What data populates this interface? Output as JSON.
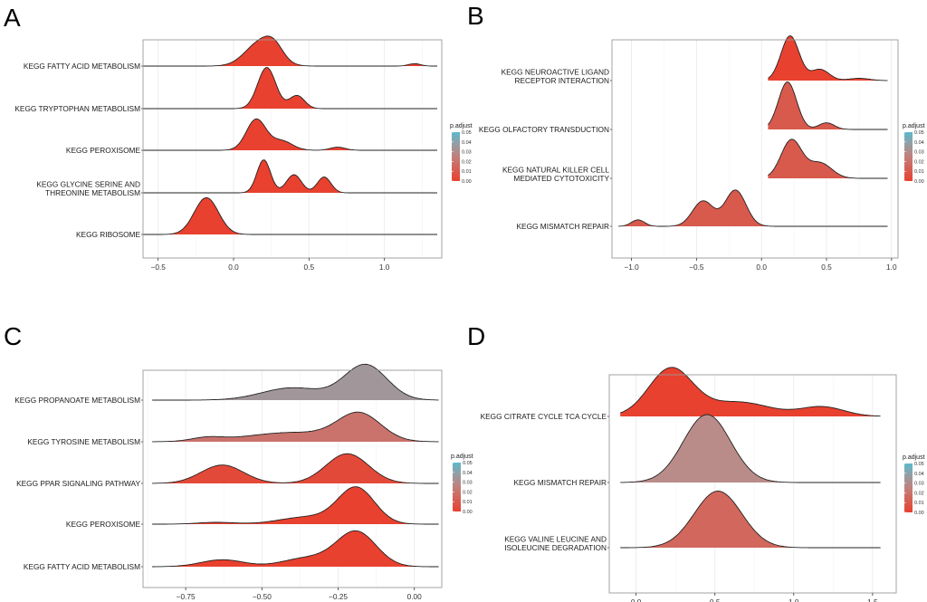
{
  "legend": {
    "title": "p.adjust",
    "ticks": [
      "0.05",
      "0.04",
      "0.03",
      "0.02",
      "0.01",
      "0.00"
    ],
    "color_low": "#E8412F",
    "color_high": "#5BB8CC"
  },
  "chart_data": [
    {
      "panel": "A",
      "type": "ridgeline",
      "xlim": [
        -0.6,
        1.38
      ],
      "xticks": [
        -0.5,
        0.0,
        0.5,
        1.0
      ],
      "xtick_labels": [
        "−0.5",
        "0.0",
        "0.5",
        "1.0"
      ],
      "pathways": [
        {
          "label": "KEGG FATTY ACID METABOLISM",
          "padj": 0.0,
          "range": [
            -0.6,
            1.35
          ],
          "peak": 0.62,
          "bumps": [
            [
              0.18,
              1.0,
              0.1
            ],
            [
              0.27,
              0.45,
              0.06
            ],
            [
              1.2,
              0.1,
              0.04
            ]
          ]
        },
        {
          "label": "KEGG TRYPTOPHAN METABOLISM",
          "padj": 0.0,
          "range": [
            -0.6,
            1.35
          ],
          "peak": 0.85,
          "bumps": [
            [
              0.22,
              1.0,
              0.06
            ],
            [
              0.42,
              0.32,
              0.05
            ]
          ]
        },
        {
          "label": "KEGG PEROXISOME",
          "padj": 0.0,
          "range": [
            -0.6,
            1.35
          ],
          "peak": 0.65,
          "bumps": [
            [
              0.15,
              1.0,
              0.065
            ],
            [
              0.32,
              0.3,
              0.07
            ],
            [
              0.69,
              0.1,
              0.05
            ]
          ]
        },
        {
          "label": [
            "KEGG GLYCINE SERINE AND",
            "THREONINE METABOLISM"
          ],
          "padj": 0.0,
          "range": [
            -0.6,
            1.35
          ],
          "peak": 0.68,
          "bumps": [
            [
              0.2,
              1.0,
              0.045
            ],
            [
              0.4,
              0.55,
              0.05
            ],
            [
              0.6,
              0.48,
              0.045
            ]
          ]
        },
        {
          "label": "KEGG RIBOSOME",
          "padj": 0.0,
          "range": [
            -0.6,
            1.35
          ],
          "peak": 0.76,
          "bumps": [
            [
              -0.18,
              1.0,
              0.08
            ]
          ]
        }
      ]
    },
    {
      "panel": "B",
      "type": "ridgeline",
      "xlim": [
        -1.15,
        1.05
      ],
      "xticks": [
        -1.0,
        -0.5,
        0.0,
        0.5,
        1.0
      ],
      "xtick_labels": [
        "−1.0",
        "−0.5",
        "0.0",
        "0.5",
        "1.0"
      ],
      "pathways": [
        {
          "label": [
            "KEGG NEUROACTIVE LIGAND",
            "RECEPTOR INTERACTION"
          ],
          "padj": 0.0,
          "range": [
            0.05,
            0.97
          ],
          "peak": 0.8,
          "bumps": [
            [
              0.22,
              1.0,
              0.07
            ],
            [
              0.45,
              0.25,
              0.07
            ],
            [
              0.75,
              0.05,
              0.08
            ]
          ]
        },
        {
          "label": "KEGG OLFACTORY TRANSDUCTION",
          "padj": 0.01,
          "range": [
            0.05,
            0.97
          ],
          "peak": 0.85,
          "bumps": [
            [
              0.2,
              1.0,
              0.07
            ],
            [
              0.5,
              0.14,
              0.06
            ]
          ]
        },
        {
          "label": [
            "KEGG NATURAL KILLER CELL",
            "MEDIATED CYTOTOXICITY"
          ],
          "padj": 0.01,
          "range": [
            0.05,
            0.97
          ],
          "peak": 0.7,
          "bumps": [
            [
              0.23,
              1.0,
              0.08
            ],
            [
              0.45,
              0.4,
              0.09
            ]
          ]
        },
        {
          "label": "KEGG MISMATCH REPAIR",
          "padj": 0.01,
          "range": [
            -1.1,
            0.97
          ],
          "peak": 0.65,
          "bumps": [
            [
              -0.95,
              0.18,
              0.05
            ],
            [
              -0.45,
              0.7,
              0.08
            ],
            [
              -0.2,
              1.0,
              0.08
            ]
          ]
        }
      ]
    },
    {
      "panel": "C",
      "type": "ridgeline",
      "xlim": [
        -0.89,
        0.09
      ],
      "xticks": [
        -0.75,
        -0.5,
        -0.25,
        0.0
      ],
      "xtick_labels": [
        "−0.75",
        "−0.50",
        "−0.25",
        "0.00"
      ],
      "pathways": [
        {
          "label": "KEGG PROPANOATE METABOLISM",
          "padj": 0.035,
          "range": [
            -0.86,
            0.08
          ],
          "peak": 0.75,
          "bumps": [
            [
              -0.4,
              0.35,
              0.1
            ],
            [
              -0.16,
              1.0,
              0.07
            ]
          ]
        },
        {
          "label": "KEGG TYROSINE METABOLISM",
          "padj": 0.02,
          "range": [
            -0.86,
            0.08
          ],
          "peak": 0.62,
          "bumps": [
            [
              -0.68,
              0.13,
              0.05
            ],
            [
              -0.4,
              0.35,
              0.15
            ],
            [
              -0.18,
              1.0,
              0.07
            ]
          ]
        },
        {
          "label": "KEGG PPAR SIGNALING PATHWAY",
          "padj": 0.003,
          "range": [
            -0.86,
            0.08
          ],
          "peak": 0.62,
          "bumps": [
            [
              -0.63,
              0.62,
              0.07
            ],
            [
              -0.22,
              1.0,
              0.07
            ]
          ]
        },
        {
          "label": "KEGG PEROXISOME",
          "padj": 0.0,
          "range": [
            -0.86,
            0.08
          ],
          "peak": 0.78,
          "bumps": [
            [
              -0.65,
              0.05,
              0.06
            ],
            [
              -0.35,
              0.2,
              0.09
            ],
            [
              -0.19,
              1.0,
              0.06
            ]
          ]
        },
        {
          "label": "KEGG FATTY ACID METABOLISM",
          "padj": 0.0,
          "range": [
            -0.86,
            0.08
          ],
          "peak": 0.75,
          "bumps": [
            [
              -0.63,
              0.2,
              0.07
            ],
            [
              -0.35,
              0.25,
              0.08
            ],
            [
              -0.19,
              1.0,
              0.065
            ]
          ]
        }
      ]
    },
    {
      "panel": "D",
      "type": "ridgeline",
      "xlim": [
        -0.17,
        1.65
      ],
      "xticks": [
        0.0,
        0.5,
        1.0,
        1.5
      ],
      "xtick_labels": [
        "0.0",
        "0.5",
        "1.0",
        "1.5"
      ],
      "pathways": [
        {
          "label": "KEGG CITRATE CYCLE TCA CYCLE",
          "padj": 0.0,
          "range": [
            -0.1,
            1.55
          ],
          "peak": 0.65,
          "bumps": [
            [
              0.22,
              1.0,
              0.14
            ],
            [
              0.65,
              0.3,
              0.2
            ],
            [
              1.18,
              0.2,
              0.14
            ]
          ]
        },
        {
          "label": "KEGG MISMATCH REPAIR",
          "padj": 0.03,
          "range": [
            -0.1,
            1.55
          ],
          "peak": 0.9,
          "bumps": [
            [
              0.45,
              1.0,
              0.15
            ]
          ]
        },
        {
          "label": [
            "KEGG VALINE LEUCINE AND",
            "ISOLEUCINE DEGRADATION"
          ],
          "padj": 0.015,
          "range": [
            -0.1,
            1.55
          ],
          "peak": 0.75,
          "bumps": [
            [
              0.52,
              1.0,
              0.15
            ]
          ]
        }
      ]
    }
  ]
}
